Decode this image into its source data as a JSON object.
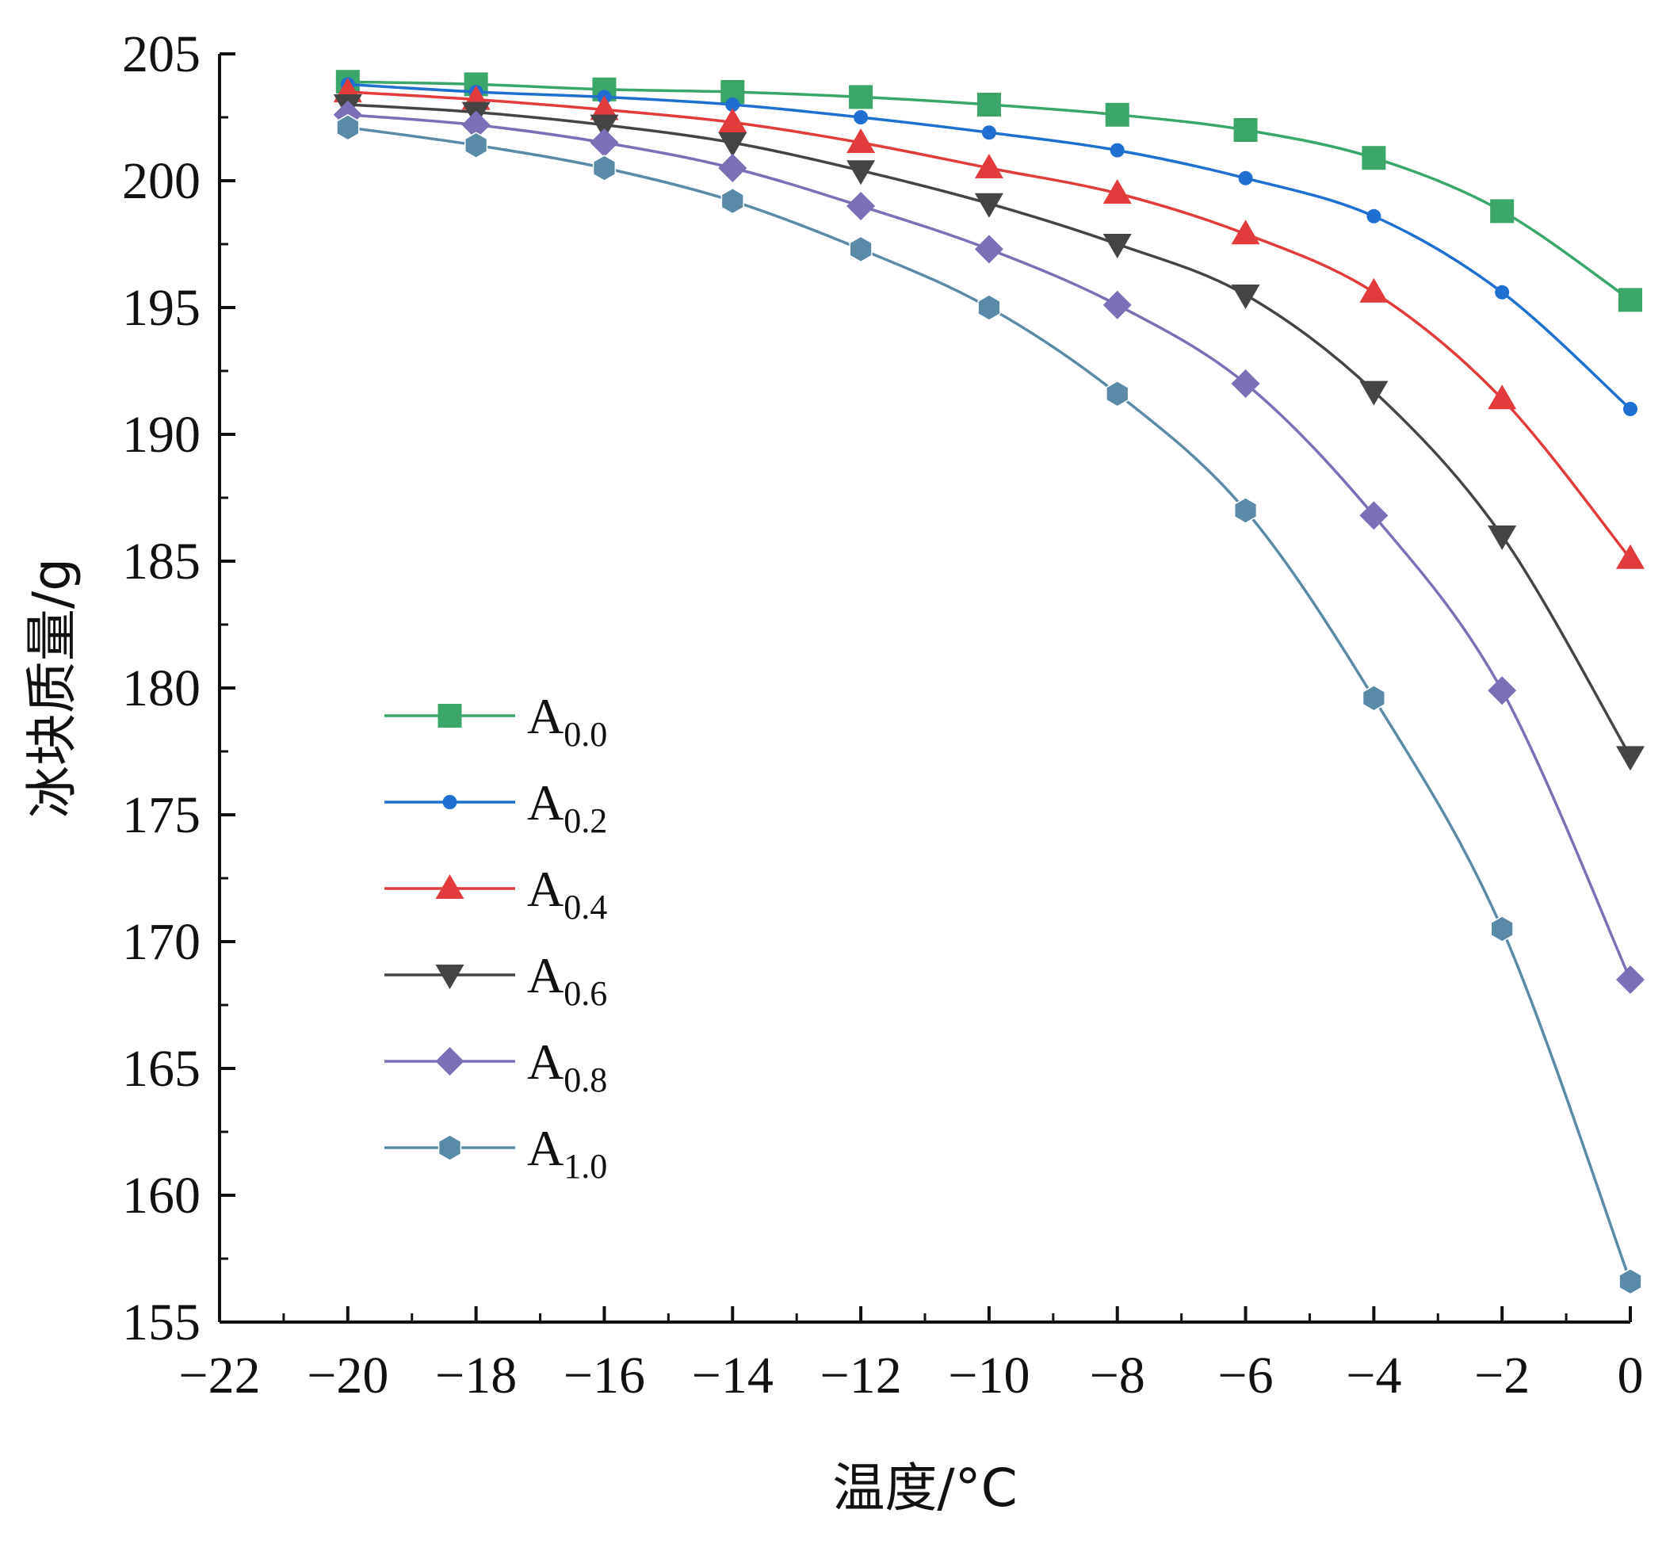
{
  "chart_data": {
    "type": "line",
    "xlabel": "温度/°C",
    "ylabel": "冰块质量/g",
    "xlim": [
      -22,
      0
    ],
    "ylim": [
      155,
      205
    ],
    "x_ticks": [
      -22,
      -20,
      -18,
      -16,
      -14,
      -12,
      -10,
      -8,
      -6,
      -4,
      -2,
      0
    ],
    "x_tick_labels": [
      "−22",
      "−20",
      "−18",
      "−16",
      "−14",
      "−12",
      "−10",
      "−8",
      "−6",
      "−4",
      "−2",
      "0"
    ],
    "y_ticks": [
      155,
      160,
      165,
      170,
      175,
      180,
      185,
      190,
      195,
      200,
      205
    ],
    "y_tick_labels": [
      "155",
      "160",
      "165",
      "170",
      "175",
      "180",
      "185",
      "190",
      "195",
      "200",
      "205"
    ],
    "grid": false,
    "legend_position": "middle-left",
    "x": [
      -20,
      -18,
      -16,
      -14,
      -12,
      -10,
      -8,
      -6,
      -4,
      -2,
      0
    ],
    "series": [
      {
        "name": "A",
        "sub": "0.0",
        "color": "#3aa66a",
        "marker": "square",
        "values": [
          203.9,
          203.8,
          203.6,
          203.5,
          203.3,
          203.0,
          202.6,
          202.0,
          200.9,
          198.8,
          195.3
        ]
      },
      {
        "name": "A",
        "sub": "0.2",
        "color": "#1f6fd1",
        "marker": "circle",
        "values": [
          203.8,
          203.5,
          203.3,
          203.0,
          202.5,
          201.9,
          201.2,
          200.1,
          198.6,
          195.6,
          191.0
        ]
      },
      {
        "name": "A",
        "sub": "0.4",
        "color": "#e23b3b",
        "marker": "triangle-up",
        "values": [
          203.5,
          203.2,
          202.8,
          202.3,
          201.5,
          200.5,
          199.5,
          197.9,
          195.6,
          191.4,
          185.1
        ]
      },
      {
        "name": "A",
        "sub": "0.6",
        "color": "#444444",
        "marker": "triangle-down",
        "values": [
          203.0,
          202.7,
          202.2,
          201.5,
          200.4,
          199.1,
          197.5,
          195.5,
          191.7,
          186.0,
          177.3
        ]
      },
      {
        "name": "A",
        "sub": "0.8",
        "color": "#7b6fb8",
        "marker": "diamond",
        "values": [
          202.6,
          202.2,
          201.5,
          200.5,
          199.0,
          197.3,
          195.1,
          192.0,
          186.8,
          179.9,
          168.5
        ]
      },
      {
        "name": "A",
        "sub": "1.0",
        "color": "#5a8aa6",
        "marker": "hexagon",
        "values": [
          202.1,
          201.4,
          200.5,
          199.2,
          197.3,
          195.0,
          191.6,
          187.0,
          179.6,
          170.5,
          156.6
        ]
      }
    ]
  }
}
